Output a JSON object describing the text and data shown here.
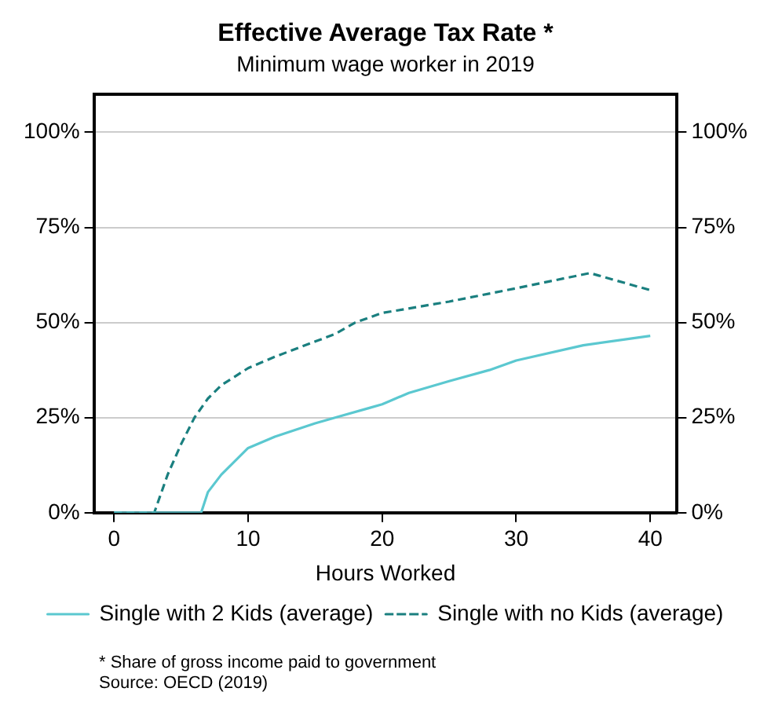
{
  "chart_data": {
    "type": "line",
    "title": "Effective Average Tax Rate *",
    "subtitle": "Minimum wage worker in 2019",
    "xlabel": "Hours Worked",
    "xlim": [
      -1.5,
      42
    ],
    "xticks": [
      0,
      10,
      20,
      30,
      40
    ],
    "ylim": [
      0,
      110
    ],
    "yticks": [
      {
        "value": 0,
        "label": "0%"
      },
      {
        "value": 25,
        "label": "25%"
      },
      {
        "value": 50,
        "label": "50%"
      },
      {
        "value": 75,
        "label": "75%"
      },
      {
        "value": 100,
        "label": "100%"
      }
    ],
    "y2lim": [
      0,
      110
    ],
    "y2ticks": [
      {
        "value": 0,
        "label": "0%"
      },
      {
        "value": 25,
        "label": "25%"
      },
      {
        "value": 50,
        "label": "50%"
      },
      {
        "value": 75,
        "label": "75%"
      },
      {
        "value": 100,
        "label": "100%"
      }
    ],
    "grid": "y",
    "legend": "bottom",
    "marker": "none",
    "series": [
      {
        "name": "Single with 2 Kids (average)",
        "color": "#5bc8d0",
        "line_style": "solid",
        "x": [
          0,
          6.5,
          7,
          8,
          10,
          12,
          15,
          17,
          19,
          20,
          22,
          25,
          28,
          30,
          35,
          40
        ],
        "values": [
          0,
          0,
          5.4,
          10,
          17,
          20,
          23.5,
          25.5,
          27.5,
          28.5,
          31.5,
          34.6,
          37.5,
          40,
          44,
          46.5
        ]
      },
      {
        "name": "Single with no Kids (average)",
        "color": "#1a7f7f",
        "line_style": "dashed",
        "x": [
          0,
          3,
          4,
          5,
          6,
          7,
          8,
          10,
          12,
          15,
          16.5,
          18,
          20,
          25,
          30,
          35.5,
          40
        ],
        "values": [
          0,
          0,
          10,
          18,
          25,
          30,
          33.5,
          38,
          41,
          45,
          47,
          50,
          52.5,
          55.5,
          59,
          63,
          58.5
        ]
      }
    ],
    "annotations": [
      "* Share of gross income paid to government",
      "Source: OECD (2019)"
    ]
  }
}
